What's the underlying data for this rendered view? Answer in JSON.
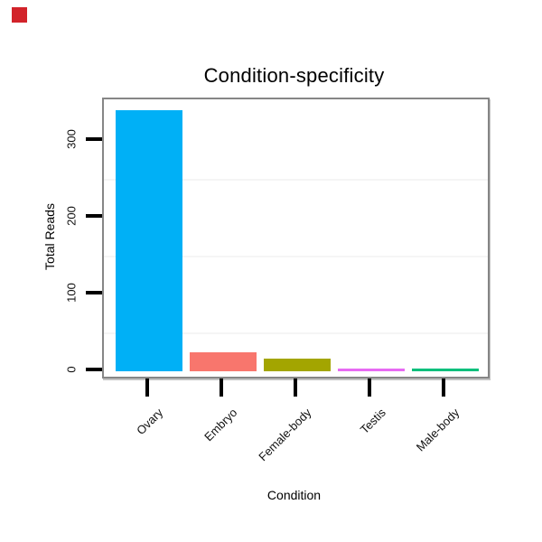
{
  "window": {
    "background_color": "#ffffff"
  },
  "marker": {
    "description": "small solid red square at top-left corner",
    "color": "#d2232a"
  },
  "chart_data": {
    "type": "bar",
    "title": "Condition-specificity",
    "xlabel": "Condition",
    "ylabel": "Total Reads",
    "categories": [
      "Ovary",
      "Embryo",
      "Female-body",
      "Testis",
      "Male-body"
    ],
    "values": [
      340,
      25,
      17,
      4,
      3
    ],
    "bar_colors": [
      "#00B0F6",
      "#F8766D",
      "#A3A500",
      "#E76BF3",
      "#00BF7C"
    ],
    "ylim": [
      0,
      355
    ],
    "ytick_labels": [
      "0",
      "100",
      "200",
      "300"
    ],
    "ytick_values": [
      0,
      100,
      200,
      300
    ],
    "minor_gridline_values": [
      50,
      150,
      250
    ],
    "grid_color": "#f5f5f5",
    "panel_background": "#ffffff",
    "panel_border_color": "#868686",
    "tick_color": "#000000",
    "legend_position": "none",
    "xtick_label_rotation_deg": 45,
    "ytick_label_rotation_deg": 90
  }
}
